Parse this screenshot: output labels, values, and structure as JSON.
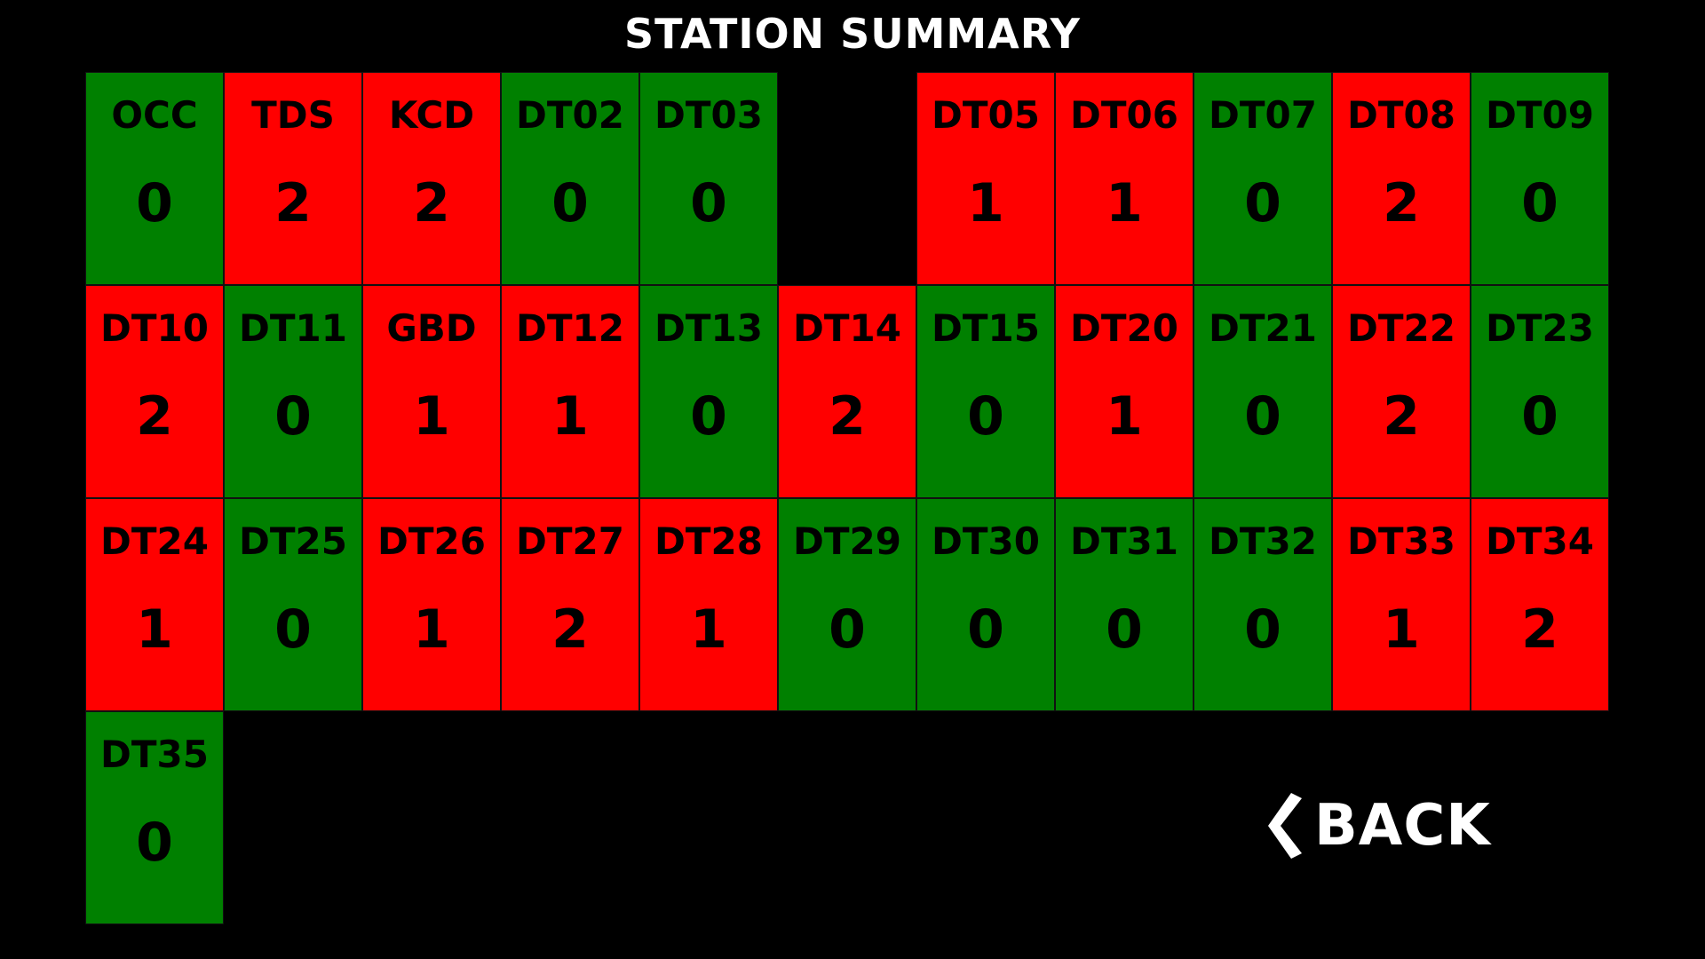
{
  "title": "STATION SUMMARY",
  "colors": {
    "ok": "#008000",
    "alarm": "#ff0000",
    "background": "#000000",
    "text": "#000000"
  },
  "stations": [
    {
      "code": "OCC",
      "count": "0",
      "status": "ok"
    },
    {
      "code": "TDS",
      "count": "2",
      "status": "alarm"
    },
    {
      "code": "KCD",
      "count": "2",
      "status": "alarm"
    },
    {
      "code": "DT02",
      "count": "0",
      "status": "ok"
    },
    {
      "code": "DT03",
      "count": "0",
      "status": "ok"
    },
    {
      "empty": true
    },
    {
      "code": "DT05",
      "count": "1",
      "status": "alarm"
    },
    {
      "code": "DT06",
      "count": "1",
      "status": "alarm"
    },
    {
      "code": "DT07",
      "count": "0",
      "status": "ok"
    },
    {
      "code": "DT08",
      "count": "2",
      "status": "alarm"
    },
    {
      "code": "DT09",
      "count": "0",
      "status": "ok"
    },
    {
      "code": "DT10",
      "count": "2",
      "status": "alarm"
    },
    {
      "code": "DT11",
      "count": "0",
      "status": "ok"
    },
    {
      "code": "GBD",
      "count": "1",
      "status": "alarm"
    },
    {
      "code": "DT12",
      "count": "1",
      "status": "alarm"
    },
    {
      "code": "DT13",
      "count": "0",
      "status": "ok"
    },
    {
      "code": "DT14",
      "count": "2",
      "status": "alarm"
    },
    {
      "code": "DT15",
      "count": "0",
      "status": "ok"
    },
    {
      "code": "DT20",
      "count": "1",
      "status": "alarm"
    },
    {
      "code": "DT21",
      "count": "0",
      "status": "ok"
    },
    {
      "code": "DT22",
      "count": "2",
      "status": "alarm"
    },
    {
      "code": "DT23",
      "count": "0",
      "status": "ok"
    },
    {
      "code": "DT24",
      "count": "1",
      "status": "alarm"
    },
    {
      "code": "DT25",
      "count": "0",
      "status": "ok"
    },
    {
      "code": "DT26",
      "count": "1",
      "status": "alarm"
    },
    {
      "code": "DT27",
      "count": "2",
      "status": "alarm"
    },
    {
      "code": "DT28",
      "count": "1",
      "status": "alarm"
    },
    {
      "code": "DT29",
      "count": "0",
      "status": "ok"
    },
    {
      "code": "DT30",
      "count": "0",
      "status": "ok"
    },
    {
      "code": "DT31",
      "count": "0",
      "status": "ok"
    },
    {
      "code": "DT32",
      "count": "0",
      "status": "ok"
    },
    {
      "code": "DT33",
      "count": "1",
      "status": "alarm"
    },
    {
      "code": "DT34",
      "count": "2",
      "status": "alarm"
    },
    {
      "code": "DT35",
      "count": "0",
      "status": "ok"
    }
  ],
  "back": {
    "label": "BACK",
    "icon": "chevron-left-icon"
  }
}
